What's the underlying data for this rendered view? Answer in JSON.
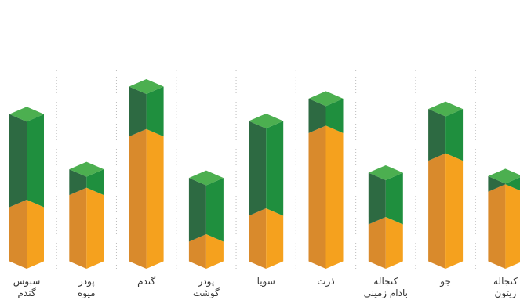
{
  "chart_data": {
    "type": "bar",
    "stacked": true,
    "title": "",
    "xlabel": "",
    "ylabel": "",
    "categories": [
      [
        "سبوس",
        "گندم"
      ],
      [
        "پودر",
        "میوه"
      ],
      [
        "گندم"
      ],
      [
        "پودر",
        "گوشت"
      ],
      [
        "سویا"
      ],
      [
        "ذرت"
      ],
      [
        "کنجاله",
        "بادام زمینی"
      ],
      [
        "جو"
      ],
      [
        "کنجاله",
        "زیتون"
      ]
    ],
    "series": [
      {
        "values": [
          40,
          47,
          81,
          20,
          35,
          83,
          30,
          67,
          49
        ],
        "color": "#F5A11E"
      },
      {
        "values": [
          54,
          15,
          29,
          37,
          55,
          20,
          30,
          30,
          9
        ],
        "color": "#1F8F3E"
      }
    ],
    "ylim": [
      0,
      126
    ],
    "grid": false,
    "legend": "none",
    "colors": {
      "bottom_front": "#F5A11E",
      "bottom_side": "#D98A2C",
      "top_front": "#1F8F3E",
      "top_side": "#2D6A42",
      "cap": "#4CAF50",
      "separator": "#bbbbbb"
    }
  }
}
